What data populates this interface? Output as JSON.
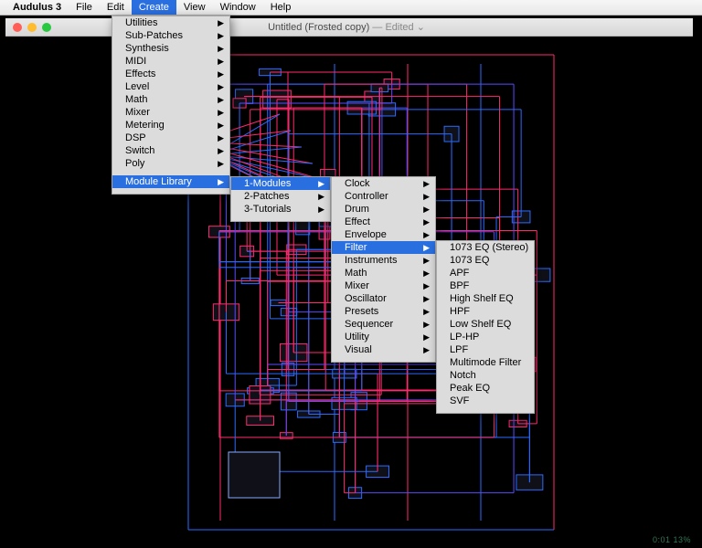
{
  "menubar": {
    "app": "Audulus 3",
    "items": [
      "File",
      "Edit",
      "Create",
      "View",
      "Window",
      "Help"
    ],
    "active": "Create"
  },
  "window": {
    "title_a": "Untitled (Frosted copy)",
    "title_b": " — Edited",
    "chevron": "⌄",
    "traffic": {
      "close": "#ff5f57",
      "min": "#febc2e",
      "max": "#28c840"
    }
  },
  "menu1": {
    "items": [
      "Utilities",
      "Sub-Patches",
      "Synthesis",
      "MIDI",
      "Effects",
      "Level",
      "Math",
      "Mixer",
      "Metering",
      "DSP",
      "Switch",
      "Poly"
    ],
    "highlighted": "Module Library"
  },
  "menu2": {
    "items": [
      "1-Modules",
      "2-Patches",
      "3-Tutorials"
    ],
    "highlighted": "1-Modules"
  },
  "menu3": {
    "items": [
      "Clock",
      "Controller",
      "Drum",
      "Effect",
      "Envelope",
      "Filter",
      "Instruments",
      "Math",
      "Mixer",
      "Oscillator",
      "Presets",
      "Sequencer",
      "Utility",
      "Visual"
    ],
    "highlighted": "Filter"
  },
  "menu4": {
    "items": [
      "1073 EQ (Stereo)",
      "1073 EQ",
      "APF",
      "BPF",
      "High Shelf EQ",
      "HPF",
      "Low Shelf EQ",
      "LP-HP",
      "LPF",
      "Multimode Filter",
      "Notch",
      "Peak EQ",
      "SVF"
    ]
  },
  "patch": {
    "colors": {
      "wire_a": "#ff2a6d",
      "wire_b": "#2a6bff",
      "wire_c": "#5a4aff",
      "node_fill": "#101018",
      "node_stroke": "#2a6bff"
    },
    "line_w": 1
  },
  "status": "0:01  13%"
}
